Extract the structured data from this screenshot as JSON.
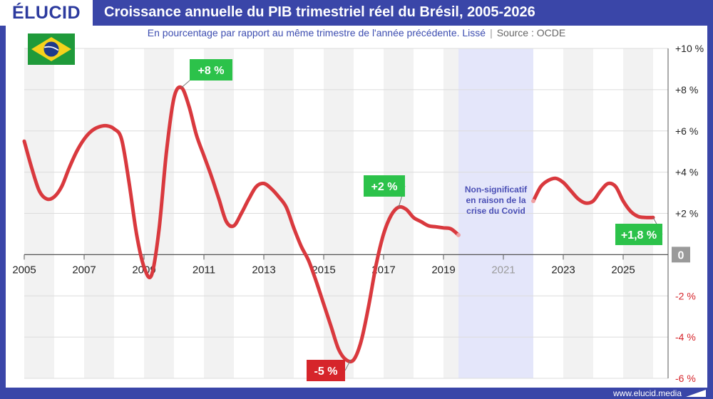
{
  "header": {
    "logo": "ÉLUCID",
    "title": "Croissance annuelle du PIB trimestriel réel du Brésil, 2005-2026"
  },
  "subtitle": {
    "text": "En pourcentage par rapport au même trimestre de l'année précédente. Lissé",
    "separator": "|",
    "source": "Source : OCDE"
  },
  "footer": {
    "url": "www.elucid.media"
  },
  "flag": {
    "country": "Brésil",
    "icon": "brazil-flag-icon"
  },
  "colors": {
    "frame": "#3a46a8",
    "line": "#d9393e",
    "covid_band": "#e4e6fa",
    "stripe": "#f2f2f2",
    "callout_pos": "#2cc24a",
    "callout_neg": "#d6252b",
    "zero_badge": "#9a9a9a",
    "covid_text": "#4a4fb5"
  },
  "chart_data": {
    "type": "line",
    "title": "Croissance annuelle du PIB trimestriel réel du Brésil, 2005-2026",
    "xlabel": "",
    "ylabel": "",
    "xlim": [
      2005,
      2026.5
    ],
    "ylim": [
      -6,
      10
    ],
    "y_ticks": [
      {
        "value": 10,
        "label": "+10 %"
      },
      {
        "value": 8,
        "label": "+8 %"
      },
      {
        "value": 6,
        "label": "+6 %"
      },
      {
        "value": 4,
        "label": "+4 %"
      },
      {
        "value": 2,
        "label": "+2 %"
      },
      {
        "value": 0,
        "label": "0"
      },
      {
        "value": -2,
        "label": "-2 %"
      },
      {
        "value": -4,
        "label": "-4 %"
      },
      {
        "value": -6,
        "label": "-6 %"
      }
    ],
    "x_ticks": [
      {
        "value": 2005,
        "label": "2005"
      },
      {
        "value": 2007,
        "label": "2007"
      },
      {
        "value": 2009,
        "label": "2009"
      },
      {
        "value": 2011,
        "label": "2011"
      },
      {
        "value": 2013,
        "label": "2013"
      },
      {
        "value": 2015,
        "label": "2015"
      },
      {
        "value": 2017,
        "label": "2017"
      },
      {
        "value": 2019,
        "label": "2019"
      },
      {
        "value": 2021,
        "label": "2021",
        "dim": true
      },
      {
        "value": 2023,
        "label": "2023"
      },
      {
        "value": 2025,
        "label": "2025"
      }
    ],
    "axis_position": "right",
    "grid": true,
    "alternating_year_bands": true,
    "series": [
      {
        "segments": [
          [
            [
              2005.0,
              5.5
            ],
            [
              2005.25,
              4.2
            ],
            [
              2005.5,
              3.1
            ],
            [
              2005.75,
              2.7
            ],
            [
              2006.0,
              2.8
            ],
            [
              2006.25,
              3.3
            ],
            [
              2006.5,
              4.2
            ],
            [
              2006.75,
              5.0
            ],
            [
              2007.0,
              5.6
            ],
            [
              2007.25,
              6.0
            ],
            [
              2007.5,
              6.2
            ],
            [
              2007.75,
              6.25
            ],
            [
              2008.0,
              6.1
            ],
            [
              2008.25,
              5.6
            ],
            [
              2008.5,
              3.5
            ],
            [
              2008.75,
              1.0
            ],
            [
              2009.0,
              -0.6
            ],
            [
              2009.25,
              -1.0
            ],
            [
              2009.5,
              1.2
            ],
            [
              2009.75,
              5.0
            ],
            [
              2010.0,
              7.6
            ],
            [
              2010.25,
              8.1
            ],
            [
              2010.5,
              7.2
            ],
            [
              2010.75,
              5.8
            ],
            [
              2011.0,
              4.8
            ],
            [
              2011.25,
              3.8
            ],
            [
              2011.5,
              2.7
            ],
            [
              2011.75,
              1.6
            ],
            [
              2012.0,
              1.4
            ],
            [
              2012.25,
              2.0
            ],
            [
              2012.5,
              2.7
            ],
            [
              2012.75,
              3.3
            ],
            [
              2013.0,
              3.45
            ],
            [
              2013.25,
              3.2
            ],
            [
              2013.5,
              2.8
            ],
            [
              2013.75,
              2.3
            ],
            [
              2014.0,
              1.3
            ],
            [
              2014.25,
              0.4
            ],
            [
              2014.5,
              -0.3
            ],
            [
              2014.75,
              -1.3
            ],
            [
              2015.0,
              -2.4
            ],
            [
              2015.25,
              -3.5
            ],
            [
              2015.5,
              -4.6
            ],
            [
              2015.75,
              -5.1
            ],
            [
              2016.0,
              -5.1
            ],
            [
              2016.25,
              -4.2
            ],
            [
              2016.5,
              -2.5
            ],
            [
              2016.75,
              -0.5
            ],
            [
              2017.0,
              1.0
            ],
            [
              2017.25,
              1.9
            ],
            [
              2017.5,
              2.3
            ],
            [
              2017.75,
              2.2
            ],
            [
              2018.0,
              1.8
            ],
            [
              2018.25,
              1.6
            ],
            [
              2018.5,
              1.4
            ],
            [
              2018.75,
              1.35
            ],
            [
              2019.0,
              1.3
            ],
            [
              2019.25,
              1.25
            ],
            [
              2019.5,
              0.95
            ]
          ],
          [
            [
              2022.0,
              2.6
            ],
            [
              2022.25,
              3.3
            ],
            [
              2022.5,
              3.6
            ],
            [
              2022.75,
              3.7
            ],
            [
              2023.0,
              3.5
            ],
            [
              2023.25,
              3.1
            ],
            [
              2023.5,
              2.7
            ],
            [
              2023.75,
              2.5
            ],
            [
              2024.0,
              2.6
            ],
            [
              2024.25,
              3.1
            ],
            [
              2024.5,
              3.45
            ],
            [
              2024.75,
              3.3
            ],
            [
              2025.0,
              2.6
            ],
            [
              2025.25,
              2.1
            ],
            [
              2025.5,
              1.85
            ],
            [
              2025.75,
              1.8
            ],
            [
              2026.0,
              1.8
            ]
          ]
        ]
      }
    ],
    "annotations": [
      {
        "text": "+8 %",
        "x": 2010.25,
        "y": 8.1,
        "kind": "positive"
      },
      {
        "text": "-5 %",
        "x": 2015.9,
        "y": -5.1,
        "kind": "negative"
      },
      {
        "text": "+2 %",
        "x": 2017.5,
        "y": 2.3,
        "kind": "positive"
      },
      {
        "text": "+1,8 %",
        "x": 2026.0,
        "y": 1.8,
        "kind": "positive"
      }
    ],
    "covid_band": {
      "x_start": 2019.5,
      "x_end": 2022.0,
      "note": [
        "Non-significatif",
        "en raison de la",
        "crise du Covid"
      ]
    },
    "zero_label": "0"
  }
}
